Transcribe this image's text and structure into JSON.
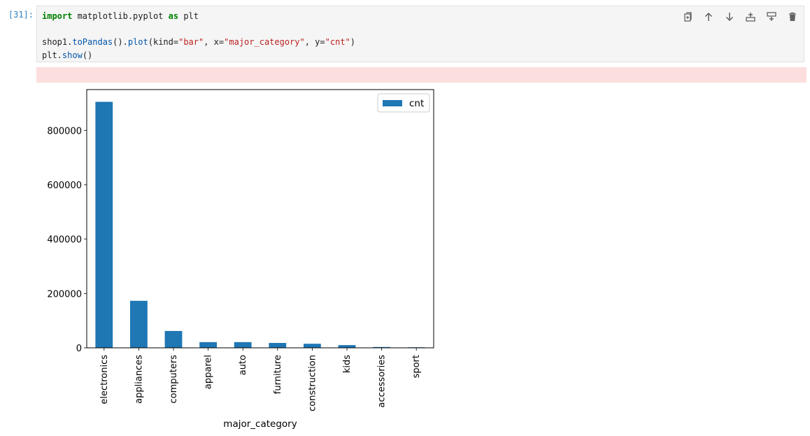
{
  "cell": {
    "prompt": "[31]:",
    "code_lines": [
      [
        {
          "t": "import",
          "c": "kw"
        },
        {
          "t": " matplotlib.pyplot ",
          "c": ""
        },
        {
          "t": "as",
          "c": "kw"
        },
        {
          "t": " plt",
          "c": ""
        }
      ],
      [],
      [
        {
          "t": "shop1.",
          "c": ""
        },
        {
          "t": "toPandas",
          "c": "fn"
        },
        {
          "t": "().",
          "c": ""
        },
        {
          "t": "plot",
          "c": "fn"
        },
        {
          "t": "(kind=",
          "c": ""
        },
        {
          "t": "\"bar\"",
          "c": "str"
        },
        {
          "t": ", x=",
          "c": ""
        },
        {
          "t": "\"major_category\"",
          "c": "str"
        },
        {
          "t": ", y=",
          "c": ""
        },
        {
          "t": "\"cnt\"",
          "c": "str"
        },
        {
          "t": ")",
          "c": ""
        }
      ],
      [
        {
          "t": "plt.",
          "c": ""
        },
        {
          "t": "show",
          "c": "fn"
        },
        {
          "t": "()",
          "c": ""
        }
      ]
    ]
  },
  "toolbar": {
    "icons": [
      "duplicate-cell-icon",
      "move-up-icon",
      "move-down-icon",
      "insert-above-icon",
      "insert-below-icon",
      "delete-cell-icon"
    ]
  },
  "chart_data": {
    "type": "bar",
    "categories": [
      "electronics",
      "appliances",
      "computers",
      "apparel",
      "auto",
      "furniture",
      "construction",
      "kids",
      "accessories",
      "sport"
    ],
    "series": [
      {
        "name": "cnt",
        "values": [
          905000,
          173000,
          62000,
          21000,
          21000,
          18000,
          15000,
          10000,
          3000,
          2000
        ]
      }
    ],
    "xlabel": "major_category",
    "ylabel": "",
    "ylim": [
      0,
      950000
    ],
    "yticks": [
      0,
      200000,
      400000,
      600000,
      800000
    ],
    "legend": "top-right",
    "grid": false,
    "bar_color": "#1f77b4"
  }
}
